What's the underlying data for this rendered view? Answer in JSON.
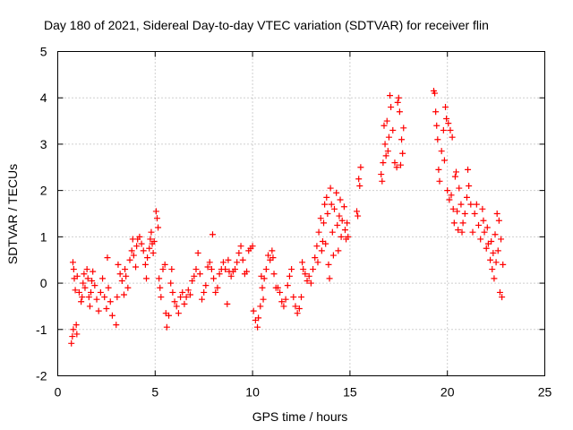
{
  "chart_data": {
    "type": "scatter",
    "title": "Day 180 of 2021, Sidereal Day-to-day VTEC variation (SDTVAR) for receiver flin",
    "xlabel": "GPS time / hours",
    "ylabel": "SDTVAR / TECUs",
    "xlim": [
      0,
      25
    ],
    "ylim": [
      -2,
      5
    ],
    "xticks": [
      0,
      5,
      10,
      15,
      20,
      25
    ],
    "yticks": [
      -2,
      -1,
      0,
      1,
      2,
      3,
      4,
      5
    ],
    "xtick_labels": [
      "0",
      "5",
      "10",
      "15",
      "20",
      "25"
    ],
    "ytick_labels": [
      "-2",
      "-1",
      "0",
      "1",
      "2",
      "3",
      "4",
      "5"
    ],
    "grid": true,
    "marker": "+",
    "color": "#ff0000",
    "series": [
      {
        "name": "SDTVAR",
        "points": [
          [
            0.7,
            -1.3
          ],
          [
            0.75,
            -1.15
          ],
          [
            0.8,
            -1.0
          ],
          [
            0.78,
            0.45
          ],
          [
            0.82,
            0.3
          ],
          [
            0.85,
            0.1
          ],
          [
            0.9,
            -0.15
          ],
          [
            0.95,
            -0.9
          ],
          [
            0.98,
            -1.1
          ],
          [
            1.0,
            0.15
          ],
          [
            1.1,
            -0.2
          ],
          [
            1.2,
            -0.4
          ],
          [
            1.25,
            -0.3
          ],
          [
            1.3,
            0.0
          ],
          [
            1.35,
            0.2
          ],
          [
            1.4,
            -0.1
          ],
          [
            1.5,
            0.3
          ],
          [
            1.55,
            0.1
          ],
          [
            1.6,
            -0.3
          ],
          [
            1.65,
            -0.5
          ],
          [
            1.7,
            -0.2
          ],
          [
            1.75,
            0.05
          ],
          [
            1.8,
            0.25
          ],
          [
            1.9,
            -0.05
          ],
          [
            2.0,
            -0.35
          ],
          [
            2.1,
            -0.6
          ],
          [
            2.2,
            -0.2
          ],
          [
            2.3,
            0.1
          ],
          [
            2.4,
            -0.3
          ],
          [
            2.5,
            -0.55
          ],
          [
            2.55,
            0.55
          ],
          [
            2.6,
            -0.1
          ],
          [
            2.7,
            -0.4
          ],
          [
            2.8,
            -0.7
          ],
          [
            3.0,
            -0.9
          ],
          [
            3.05,
            -0.3
          ],
          [
            3.1,
            0.4
          ],
          [
            3.2,
            0.2
          ],
          [
            3.3,
            0.05
          ],
          [
            3.4,
            -0.25
          ],
          [
            3.45,
            0.3
          ],
          [
            3.5,
            0.15
          ],
          [
            3.6,
            -0.1
          ],
          [
            3.7,
            0.5
          ],
          [
            3.8,
            0.7
          ],
          [
            3.85,
            0.95
          ],
          [
            3.9,
            0.6
          ],
          [
            4.0,
            0.35
          ],
          [
            4.05,
            0.8
          ],
          [
            4.1,
            0.95
          ],
          [
            4.2,
            1.0
          ],
          [
            4.3,
            0.85
          ],
          [
            4.4,
            0.7
          ],
          [
            4.5,
            0.4
          ],
          [
            4.55,
            0.1
          ],
          [
            4.6,
            0.55
          ],
          [
            4.7,
            0.75
          ],
          [
            4.75,
            0.95
          ],
          [
            4.8,
            1.1
          ],
          [
            4.85,
            0.85
          ],
          [
            4.9,
            0.65
          ],
          [
            4.95,
            0.9
          ],
          [
            5.05,
            1.55
          ],
          [
            5.1,
            1.4
          ],
          [
            5.15,
            1.2
          ],
          [
            5.2,
            0.1
          ],
          [
            5.25,
            -0.1
          ],
          [
            5.3,
            -0.3
          ],
          [
            5.4,
            0.3
          ],
          [
            5.5,
            0.4
          ],
          [
            5.55,
            -0.65
          ],
          [
            5.6,
            -0.95
          ],
          [
            5.7,
            -0.7
          ],
          [
            5.8,
            0.0
          ],
          [
            5.85,
            0.3
          ],
          [
            5.9,
            -0.2
          ],
          [
            6.0,
            -0.4
          ],
          [
            6.1,
            -0.5
          ],
          [
            6.2,
            -0.65
          ],
          [
            6.3,
            -0.3
          ],
          [
            6.4,
            -0.2
          ],
          [
            6.5,
            -0.45
          ],
          [
            6.6,
            -0.3
          ],
          [
            6.7,
            -0.15
          ],
          [
            6.8,
            -0.25
          ],
          [
            6.9,
            0.05
          ],
          [
            7.0,
            0.15
          ],
          [
            7.1,
            0.3
          ],
          [
            7.2,
            0.65
          ],
          [
            7.3,
            0.2
          ],
          [
            7.4,
            -0.35
          ],
          [
            7.5,
            -0.2
          ],
          [
            7.6,
            -0.05
          ],
          [
            7.7,
            0.35
          ],
          [
            7.8,
            0.45
          ],
          [
            7.9,
            0.3
          ],
          [
            7.95,
            1.05
          ],
          [
            8.0,
            0.1
          ],
          [
            8.1,
            -0.2
          ],
          [
            8.2,
            -0.1
          ],
          [
            8.3,
            0.2
          ],
          [
            8.4,
            0.3
          ],
          [
            8.5,
            0.45
          ],
          [
            8.6,
            0.3
          ],
          [
            8.7,
            -0.45
          ],
          [
            8.75,
            0.5
          ],
          [
            8.8,
            0.25
          ],
          [
            8.9,
            0.15
          ],
          [
            9.0,
            0.25
          ],
          [
            9.1,
            0.3
          ],
          [
            9.2,
            0.45
          ],
          [
            9.3,
            0.65
          ],
          [
            9.4,
            0.8
          ],
          [
            9.5,
            0.5
          ],
          [
            9.6,
            0.2
          ],
          [
            9.7,
            0.25
          ],
          [
            9.8,
            0.7
          ],
          [
            9.9,
            0.75
          ],
          [
            10.0,
            0.8
          ],
          [
            10.05,
            -0.6
          ],
          [
            10.15,
            -0.8
          ],
          [
            10.25,
            -0.95
          ],
          [
            10.3,
            -0.75
          ],
          [
            10.4,
            -0.5
          ],
          [
            10.45,
            0.15
          ],
          [
            10.5,
            -0.1
          ],
          [
            10.55,
            -0.35
          ],
          [
            10.6,
            0.1
          ],
          [
            10.7,
            0.3
          ],
          [
            10.8,
            0.6
          ],
          [
            10.9,
            0.5
          ],
          [
            11.0,
            0.7
          ],
          [
            11.05,
            0.55
          ],
          [
            11.1,
            0.2
          ],
          [
            11.2,
            -0.1
          ],
          [
            11.3,
            -0.1
          ],
          [
            11.4,
            -0.2
          ],
          [
            11.5,
            -0.4
          ],
          [
            11.6,
            -0.5
          ],
          [
            11.7,
            -0.35
          ],
          [
            11.8,
            -0.05
          ],
          [
            11.9,
            0.15
          ],
          [
            12.0,
            0.3
          ],
          [
            12.1,
            -0.3
          ],
          [
            12.2,
            -0.5
          ],
          [
            12.3,
            -0.65
          ],
          [
            12.4,
            -0.55
          ],
          [
            12.5,
            -0.3
          ],
          [
            12.55,
            0.45
          ],
          [
            12.6,
            0.3
          ],
          [
            12.7,
            0.2
          ],
          [
            12.8,
            0.05
          ],
          [
            12.9,
            0.15
          ],
          [
            13.0,
            0.0
          ],
          [
            13.1,
            0.3
          ],
          [
            13.2,
            0.55
          ],
          [
            13.3,
            0.8
          ],
          [
            13.35,
            0.45
          ],
          [
            13.4,
            1.1
          ],
          [
            13.5,
            1.4
          ],
          [
            13.55,
            0.7
          ],
          [
            13.6,
            0.9
          ],
          [
            13.65,
            1.3
          ],
          [
            13.7,
            1.7
          ],
          [
            13.75,
            0.85
          ],
          [
            13.8,
            1.85
          ],
          [
            13.85,
            1.5
          ],
          [
            13.9,
            0.4
          ],
          [
            13.95,
            0.1
          ],
          [
            14.0,
            2.05
          ],
          [
            14.05,
            1.7
          ],
          [
            14.1,
            1.1
          ],
          [
            14.15,
            0.6
          ],
          [
            14.2,
            1.6
          ],
          [
            14.3,
            1.95
          ],
          [
            14.35,
            1.25
          ],
          [
            14.4,
            0.7
          ],
          [
            14.45,
            1.45
          ],
          [
            14.5,
            1.8
          ],
          [
            14.55,
            1.0
          ],
          [
            14.6,
            1.35
          ],
          [
            14.7,
            1.65
          ],
          [
            14.75,
            1.15
          ],
          [
            14.8,
            0.95
          ],
          [
            14.85,
            1.3
          ],
          [
            14.9,
            1.0
          ],
          [
            15.35,
            1.55
          ],
          [
            15.4,
            1.45
          ],
          [
            15.45,
            2.25
          ],
          [
            15.5,
            2.1
          ],
          [
            15.55,
            2.5
          ],
          [
            16.6,
            2.35
          ],
          [
            16.65,
            2.2
          ],
          [
            16.7,
            2.6
          ],
          [
            16.75,
            3.4
          ],
          [
            16.8,
            3.0
          ],
          [
            16.85,
            2.75
          ],
          [
            16.9,
            3.5
          ],
          [
            16.95,
            2.85
          ],
          [
            17.0,
            3.15
          ],
          [
            17.05,
            4.05
          ],
          [
            17.1,
            3.8
          ],
          [
            17.2,
            3.3
          ],
          [
            17.3,
            2.6
          ],
          [
            17.4,
            2.5
          ],
          [
            17.45,
            3.9
          ],
          [
            17.5,
            4.0
          ],
          [
            17.55,
            3.7
          ],
          [
            17.6,
            2.55
          ],
          [
            17.65,
            3.1
          ],
          [
            17.7,
            2.8
          ],
          [
            17.75,
            3.35
          ],
          [
            19.3,
            4.15
          ],
          [
            19.35,
            4.1
          ],
          [
            19.4,
            3.7
          ],
          [
            19.45,
            3.4
          ],
          [
            19.5,
            3.1
          ],
          [
            19.55,
            2.45
          ],
          [
            19.6,
            2.2
          ],
          [
            19.7,
            2.85
          ],
          [
            19.8,
            3.3
          ],
          [
            19.85,
            2.65
          ],
          [
            19.9,
            3.8
          ],
          [
            19.95,
            3.55
          ],
          [
            20.0,
            2.0
          ],
          [
            20.05,
            3.45
          ],
          [
            20.1,
            1.8
          ],
          [
            20.15,
            3.3
          ],
          [
            20.2,
            1.9
          ],
          [
            20.25,
            3.15
          ],
          [
            20.3,
            1.6
          ],
          [
            20.35,
            1.3
          ],
          [
            20.4,
            2.3
          ],
          [
            20.45,
            2.4
          ],
          [
            20.5,
            1.55
          ],
          [
            20.55,
            1.15
          ],
          [
            20.6,
            2.05
          ],
          [
            20.7,
            1.7
          ],
          [
            20.75,
            1.1
          ],
          [
            20.8,
            1.3
          ],
          [
            20.9,
            1.5
          ],
          [
            21.0,
            1.85
          ],
          [
            21.05,
            2.45
          ],
          [
            21.1,
            2.1
          ],
          [
            21.2,
            1.7
          ],
          [
            21.3,
            1.1
          ],
          [
            21.4,
            1.5
          ],
          [
            21.5,
            1.7
          ],
          [
            21.6,
            1.25
          ],
          [
            21.7,
            0.95
          ],
          [
            21.8,
            1.6
          ],
          [
            21.85,
            1.35
          ],
          [
            21.9,
            1.1
          ],
          [
            22.0,
            0.75
          ],
          [
            22.05,
            1.2
          ],
          [
            22.1,
            0.85
          ],
          [
            22.2,
            0.5
          ],
          [
            22.25,
            0.9
          ],
          [
            22.3,
            0.3
          ],
          [
            22.35,
            0.65
          ],
          [
            22.4,
            0.1
          ],
          [
            22.45,
            1.05
          ],
          [
            22.5,
            0.45
          ],
          [
            22.55,
            1.5
          ],
          [
            22.6,
            0.7
          ],
          [
            22.65,
            1.35
          ],
          [
            22.7,
            -0.2
          ],
          [
            22.75,
            0.95
          ],
          [
            22.8,
            -0.3
          ],
          [
            22.85,
            0.4
          ]
        ]
      }
    ]
  }
}
